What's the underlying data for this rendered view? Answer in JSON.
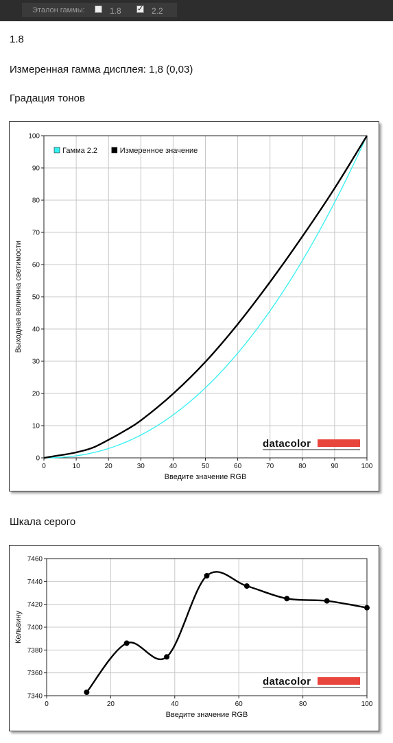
{
  "toolbar": {
    "label": "Эталон гаммы:",
    "options": [
      {
        "label": "1.8",
        "checked": false
      },
      {
        "label": "2.2",
        "checked": true
      }
    ]
  },
  "heading_value": "1.8",
  "measured_text": "Измеренная гамма дисплея: 1,8 (0,03)",
  "section1_title": "Градация тонов",
  "section2_title": "Шкала серого",
  "logo_text": "datacolor",
  "colors": {
    "toolbar_bg": "#2d2d2d",
    "gamma_line": "#33f0f0",
    "measured_line": "#000000",
    "logo_bar": "#e8453c"
  },
  "chart_data": [
    {
      "type": "line",
      "xlabel": "Введите значение RGB",
      "ylabel": "Выходная величина светимости",
      "xlim": [
        0,
        100
      ],
      "ylim": [
        0,
        100
      ],
      "xticks": [
        0,
        10,
        20,
        30,
        40,
        50,
        60,
        70,
        80,
        90,
        100
      ],
      "yticks": [
        0,
        10,
        20,
        30,
        40,
        50,
        60,
        70,
        80,
        90,
        100
      ],
      "grid": true,
      "legend_position": "top-left",
      "series": [
        {
          "name": "Гамма 2.2",
          "color": "#33f0f0",
          "gamma": 2.2,
          "x": [
            0,
            10,
            20,
            30,
            40,
            50,
            60,
            70,
            80,
            90,
            100
          ],
          "y": [
            0,
            0.6,
            2.9,
            7.1,
            13.3,
            21.8,
            32.5,
            45.6,
            61.2,
            79.3,
            100
          ]
        },
        {
          "name": "Измеренное значение",
          "color": "#000000",
          "x": [
            0,
            5,
            10,
            15,
            20,
            25,
            30,
            40,
            50,
            60,
            70,
            80,
            90,
            100
          ],
          "y": [
            0,
            0.8,
            1.7,
            3.1,
            5.6,
            8.4,
            11.6,
            19.9,
            29.8,
            41.5,
            54.6,
            68.7,
            83.7,
            100
          ]
        }
      ]
    },
    {
      "type": "line",
      "xlabel": "Введите значение RGB",
      "ylabel": "Кельвину",
      "xlim": [
        0,
        100
      ],
      "ylim": [
        7340,
        7460
      ],
      "xticks": [
        0,
        20,
        40,
        60,
        80,
        100
      ],
      "yticks": [
        7340,
        7360,
        7380,
        7400,
        7420,
        7440,
        7460
      ],
      "grid": true,
      "series": [
        {
          "color": "#000000",
          "x": [
            12.5,
            25,
            37.5,
            50,
            62.5,
            75,
            87.5,
            100
          ],
          "y": [
            7343,
            7386,
            7374,
            7445,
            7436,
            7425,
            7423,
            7417
          ]
        }
      ]
    }
  ]
}
